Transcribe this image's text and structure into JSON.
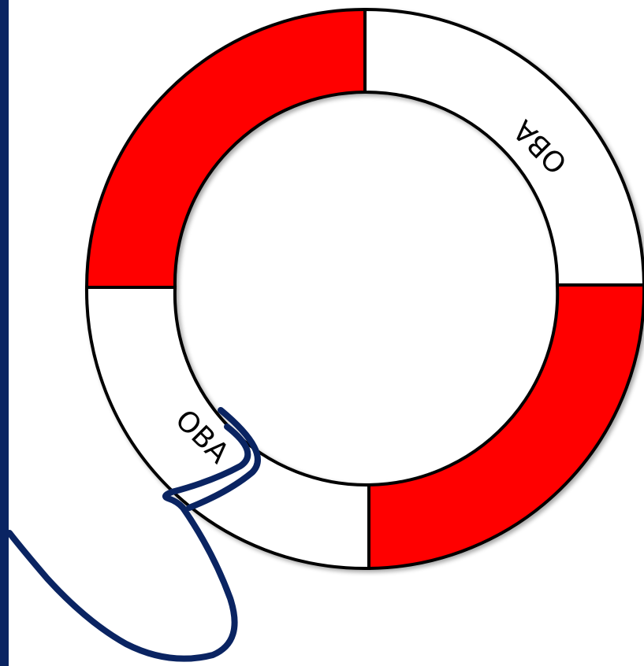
{
  "lifebuoy": {
    "labels": [
      "OBA",
      "OBA"
    ],
    "colors": {
      "red": "#ff0000",
      "white": "#ffffff",
      "outline": "#000000"
    }
  },
  "rope": {
    "color": "#0a2462"
  },
  "left_bar": {
    "color": "#0a2462"
  }
}
